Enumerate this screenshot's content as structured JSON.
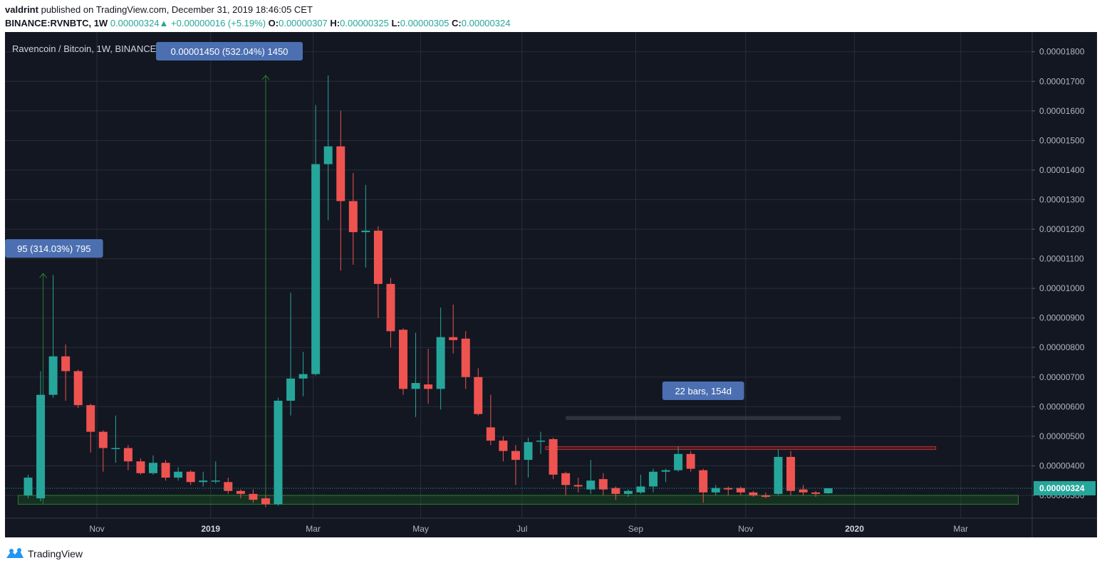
{
  "header": {
    "author": "valdrint",
    "published": "published on TradingView.com, December 31, 2019 18:46:05 CET",
    "symbol": "BINANCE:RVNBTC, 1W",
    "last": "0.00000324",
    "change": "+0.00000016 (+5.19%)",
    "o_label": "O:",
    "o_val": "0.00000307",
    "h_label": "H:",
    "h_val": "0.00000325",
    "l_label": "L:",
    "l_val": "0.00000305",
    "c_label": "C:",
    "c_val": "0.00000324"
  },
  "footer": {
    "brand": "TradingView"
  },
  "colors": {
    "up": "#26a69a",
    "down": "#ef5350",
    "bg": "#131722",
    "grid": "#2a2e39",
    "label_bg": "#4b6fb1",
    "green_zone": "#1b5e20"
  },
  "chart_data": {
    "type": "candlestick",
    "title": "Ravencoin / Bitcoin, 1W, BINANCE",
    "x_unit": "week start (bar index 0 = 2018-09-24)",
    "y_unit": "BTC",
    "ylim": [
      2.5e-06,
      1.83e-05
    ],
    "y_ticks": [
      {
        "v": 1.8e-05,
        "l": "0.00001800"
      },
      {
        "v": 1.7e-05,
        "l": "0.00001700"
      },
      {
        "v": 1.6e-05,
        "l": "0.00001600"
      },
      {
        "v": 1.5e-05,
        "l": "0.00001500"
      },
      {
        "v": 1.4e-05,
        "l": "0.00001400"
      },
      {
        "v": 1.3e-05,
        "l": "0.00001300"
      },
      {
        "v": 1.2e-05,
        "l": "0.00001200"
      },
      {
        "v": 1.1e-05,
        "l": "0.00001100"
      },
      {
        "v": 1e-05,
        "l": "0.00001000"
      },
      {
        "v": 9e-06,
        "l": "0.00000900"
      },
      {
        "v": 8e-06,
        "l": "0.00000800"
      },
      {
        "v": 7e-06,
        "l": "0.00000700"
      },
      {
        "v": 6e-06,
        "l": "0.00000600"
      },
      {
        "v": 5e-06,
        "l": "0.00000500"
      },
      {
        "v": 4e-06,
        "l": "0.00000400"
      },
      {
        "v": 3e-06,
        "l": "0.00000300"
      }
    ],
    "x_ticks": [
      {
        "i": 5.5,
        "l": "Nov",
        "bold": false
      },
      {
        "i": 14.6,
        "l": "2019",
        "bold": true
      },
      {
        "i": 22.8,
        "l": "Mar",
        "bold": false
      },
      {
        "i": 31.4,
        "l": "May",
        "bold": false
      },
      {
        "i": 39.5,
        "l": "Jul",
        "bold": false
      },
      {
        "i": 48.6,
        "l": "Sep",
        "bold": false
      },
      {
        "i": 57.4,
        "l": "Nov",
        "bold": false
      },
      {
        "i": 66.1,
        "l": "2020",
        "bold": true
      },
      {
        "i": 74.6,
        "l": "Mar",
        "bold": false
      }
    ],
    "last_price": 3.24e-06,
    "last_price_label": "0.00000324",
    "candles": [
      [
        3e-06,
        3.6e-06,
        2.9e-06,
        3.7e-06
      ],
      [
        2.9e-06,
        6.4e-06,
        2.8e-06,
        7.2e-06
      ],
      [
        6.4e-06,
        7.7e-06,
        6.3e-06,
        1.045e-05
      ],
      [
        7.7e-06,
        7.2e-06,
        6.2e-06,
        8.1e-06
      ],
      [
        7.2e-06,
        6.05e-06,
        5.95e-06,
        7.25e-06
      ],
      [
        6.05e-06,
        5.15e-06,
        4.45e-06,
        6.1e-06
      ],
      [
        5.15e-06,
        4.6e-06,
        3.8e-06,
        5.2e-06
      ],
      [
        4.6e-06,
        4.6e-06,
        4.1e-06,
        5.7e-06
      ],
      [
        4.6e-06,
        4.15e-06,
        3.85e-06,
        4.7e-06
      ],
      [
        4.15e-06,
        3.75e-06,
        3.7e-06,
        4.25e-06
      ],
      [
        3.75e-06,
        4.1e-06,
        3.7e-06,
        4.35e-06
      ],
      [
        4.1e-06,
        3.6e-06,
        3.5e-06,
        4.2e-06
      ],
      [
        3.6e-06,
        3.8e-06,
        3.5e-06,
        3.95e-06
      ],
      [
        3.8e-06,
        3.45e-06,
        3.35e-06,
        3.85e-06
      ],
      [
        3.45e-06,
        3.5e-06,
        3.3e-06,
        3.8e-06
      ],
      [
        3.5e-06,
        3.5e-06,
        3.4e-06,
        4.15e-06
      ],
      [
        3.45e-06,
        3.15e-06,
        3.05e-06,
        3.6e-06
      ],
      [
        3.15e-06,
        3.05e-06,
        2.9e-06,
        3.2e-06
      ],
      [
        3.05e-06,
        2.85e-06,
        2.75e-06,
        3.2e-06
      ],
      [
        2.9e-06,
        2.7e-06,
        2.6e-06,
        3e-06
      ],
      [
        2.7e-06,
        6.2e-06,
        2.65e-06,
        6.3e-06
      ],
      [
        6.2e-06,
        6.95e-06,
        5.7e-06,
        9.85e-06
      ],
      [
        6.95e-06,
        7.1e-06,
        6.35e-06,
        7.85e-06
      ],
      [
        7.1e-06,
        1.42e-05,
        7.05e-06,
        1.62e-05
      ],
      [
        1.42e-05,
        1.48e-05,
        1.23e-05,
        1.72e-05
      ],
      [
        1.48e-05,
        1.295e-05,
        1.06e-05,
        1.6e-05
      ],
      [
        1.295e-05,
        1.19e-05,
        1.08e-05,
        1.39e-05
      ],
      [
        1.19e-05,
        1.195e-05,
        1.07e-05,
        1.35e-05
      ],
      [
        1.195e-05,
        1.015e-05,
        9e-06,
        1.21e-05
      ],
      [
        1.015e-05,
        8.55e-06,
        8e-06,
        1.035e-05
      ],
      [
        8.6e-06,
        6.6e-06,
        6.4e-06,
        8.65e-06
      ],
      [
        6.6e-06,
        6.8e-06,
        5.65e-06,
        8.5e-06
      ],
      [
        6.75e-06,
        6.6e-06,
        6.1e-06,
        7.95e-06
      ],
      [
        6.6e-06,
        8.35e-06,
        5.9e-06,
        9.35e-06
      ],
      [
        8.35e-06,
        8.25e-06,
        7.8e-06,
        9.45e-06
      ],
      [
        8.3e-06,
        7e-06,
        6.6e-06,
        8.55e-06
      ],
      [
        7e-06,
        5.75e-06,
        5.7e-06,
        7.3e-06
      ],
      [
        5.3e-06,
        4.85e-06,
        4.7e-06,
        6.4e-06
      ],
      [
        4.85e-06,
        4.5e-06,
        4.15e-06,
        5e-06
      ],
      [
        4.5e-06,
        4.2e-06,
        3.35e-06,
        4.7e-06
      ],
      [
        4.2e-06,
        4.8e-06,
        3.6e-06,
        4.95e-06
      ],
      [
        4.85e-06,
        4.85e-06,
        4.4e-06,
        5.15e-06
      ],
      [
        4.9e-06,
        3.7e-06,
        3.55e-06,
        4.95e-06
      ],
      [
        3.75e-06,
        3.35e-06,
        3e-06,
        3.8e-06
      ],
      [
        3.35e-06,
        3.3e-06,
        3.1e-06,
        3.6e-06
      ],
      [
        3.2e-06,
        3.5e-06,
        3.05e-06,
        4.2e-06
      ],
      [
        3.55e-06,
        3.2e-06,
        3e-06,
        3.75e-06
      ],
      [
        3.25e-06,
        3.05e-06,
        2.85e-06,
        3.3e-06
      ],
      [
        3.05e-06,
        3.15e-06,
        2.95e-06,
        3.2e-06
      ],
      [
        3.1e-06,
        3.3e-06,
        3.05e-06,
        3.7e-06
      ],
      [
        3.3e-06,
        3.8e-06,
        3.1e-06,
        3.9e-06
      ],
      [
        3.8e-06,
        3.85e-06,
        3.45e-06,
        3.9e-06
      ],
      [
        3.85e-06,
        4.4e-06,
        3.8e-06,
        4.65e-06
      ],
      [
        4.4e-06,
        3.9e-06,
        3.8e-06,
        4.5e-06
      ],
      [
        3.85e-06,
        3.1e-06,
        2.75e-06,
        3.9e-06
      ],
      [
        3.1e-06,
        3.25e-06,
        3e-06,
        3.35e-06
      ],
      [
        3.25e-06,
        3.2e-06,
        3e-06,
        3.3e-06
      ],
      [
        3.25e-06,
        3.1e-06,
        3e-06,
        3.3e-06
      ],
      [
        3.1e-06,
        3e-06,
        2.95e-06,
        3.15e-06
      ],
      [
        3e-06,
        2.95e-06,
        2.9e-06,
        3.1e-06
      ],
      [
        3.05e-06,
        4.3e-06,
        3e-06,
        4.55e-06
      ],
      [
        4.3e-06,
        3.15e-06,
        3e-06,
        4.5e-06
      ],
      [
        3.2e-06,
        3.1e-06,
        3e-06,
        3.35e-06
      ],
      [
        3.1e-06,
        3.05e-06,
        2.95e-06,
        3.15e-06
      ],
      [
        3.07e-06,
        3.24e-06,
        3.05e-06,
        3.25e-06
      ]
    ],
    "annotations": [
      {
        "kind": "range",
        "text": "95 (314.03%) 795"
      },
      {
        "kind": "range",
        "text": "0.00001450 (532.04%) 1450"
      },
      {
        "kind": "range",
        "text": "22 bars, 154d"
      }
    ],
    "zones": [
      {
        "kind": "support",
        "from_i": -0.8,
        "to_i": 79.2,
        "low": 2.7e-06,
        "high": 3e-06,
        "color": "#1b5e20"
      },
      {
        "kind": "resistance",
        "from_i": 41.4,
        "to_i": 72.6,
        "low": 4.55e-06,
        "high": 4.65e-06,
        "color": "#ef5350"
      },
      {
        "kind": "bar_range",
        "from_i": 43.0,
        "to_i": 65.0,
        "low": 5.55e-06,
        "high": 5.68e-06,
        "color": "#434651"
      }
    ],
    "arrows": [
      {
        "i": 1.2,
        "from": 2.7e-06,
        "to": 1.05e-05
      },
      {
        "i": 19.0,
        "from": 2.7e-06,
        "to": 1.72e-05
      }
    ]
  }
}
